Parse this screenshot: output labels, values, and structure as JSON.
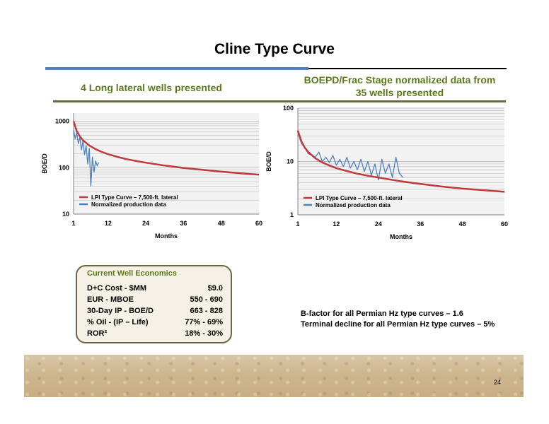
{
  "slide": {
    "title": "Cline Type Curve",
    "left_subtitle": "4 Long lateral wells presented",
    "right_subtitle_line1": "BOEPD/Frac Stage normalized data from",
    "right_subtitle_line2": "35 wells presented",
    "page_number": "24"
  },
  "economics": {
    "title": "Current Well Economics",
    "rows": [
      {
        "label": "D+C Cost - $MM",
        "value": "$9.0"
      },
      {
        "label": "EUR - MBOE",
        "value": "550 - 690"
      },
      {
        "label": "30-Day IP - BOE/D",
        "value": "663 - 828"
      },
      {
        "label": "% Oil - (IP – Life)",
        "value": "77% - 69%"
      },
      {
        "label": "ROR²",
        "value": "18% - 30%"
      }
    ]
  },
  "notes": {
    "line1": "B-factor for all Permian Hz type curves – 1.6",
    "line2": "Terminal decline for all Permian Hz type curves – 5%"
  },
  "colors": {
    "type_curve": "#c0393b",
    "production": "#4f81bd",
    "plot_bg": "#f2f2f2",
    "gridline": "#bfbfbf"
  },
  "chart_data": [
    {
      "type": "line",
      "xlabel": "Months",
      "ylabel": "BOE/D",
      "yscale": "log",
      "ylim": [
        10,
        1500
      ],
      "xlim": [
        1,
        60
      ],
      "x_ticks": [
        "1",
        "12",
        "24",
        "36",
        "48",
        "60"
      ],
      "y_ticks": [
        "10",
        "100",
        "1000"
      ],
      "legend_position": "bottom-left",
      "series": [
        {
          "name": "LPI Type Curve – 7,500-ft. lateral",
          "color": "#c0393b",
          "x": [
            1,
            2,
            3,
            4,
            6,
            8,
            10,
            12,
            15,
            18,
            21,
            24,
            30,
            36,
            42,
            48,
            54,
            60
          ],
          "y": [
            1000,
            620,
            470,
            390,
            300,
            250,
            218,
            195,
            170,
            152,
            139,
            128,
            111,
            99,
            90,
            82,
            76,
            71
          ]
        },
        {
          "name": "Normalized production data",
          "color": "#4f81bd",
          "x": [
            1,
            1.5,
            2,
            2.5,
            3,
            3.5,
            4,
            4.5,
            5,
            5.5,
            6,
            6.5,
            7,
            7.5,
            8,
            8.5,
            9
          ],
          "y": [
            650,
            420,
            560,
            330,
            450,
            240,
            380,
            190,
            300,
            120,
            260,
            40,
            170,
            80,
            140,
            110,
            130
          ]
        }
      ]
    },
    {
      "type": "line",
      "xlabel": "Months",
      "ylabel": "BOE/D",
      "yscale": "log",
      "ylim": [
        1,
        100
      ],
      "xlim": [
        1,
        60
      ],
      "x_ticks": [
        "1",
        "12",
        "24",
        "36",
        "48",
        "60"
      ],
      "y_ticks": [
        "1",
        "10",
        "100"
      ],
      "legend_position": "bottom-left",
      "series": [
        {
          "name": "LPI Type Curve – 7,500-ft. lateral",
          "color": "#c0393b",
          "x": [
            1,
            2,
            3,
            4,
            6,
            8,
            10,
            12,
            15,
            18,
            21,
            24,
            30,
            36,
            42,
            48,
            54,
            60
          ],
          "y": [
            38,
            24,
            18,
            15,
            11.5,
            9.6,
            8.4,
            7.5,
            6.6,
            5.9,
            5.4,
            5.0,
            4.3,
            3.8,
            3.4,
            3.1,
            2.9,
            2.7
          ]
        },
        {
          "name": "Normalized production data",
          "color": "#4f81bd",
          "x": [
            1,
            2,
            3,
            4,
            5,
            6,
            7,
            8,
            9,
            10,
            11,
            12,
            13,
            14,
            15,
            16,
            17,
            18,
            19,
            20,
            21,
            22,
            23,
            24,
            25,
            26,
            27,
            28,
            29,
            30,
            31
          ],
          "y": [
            35,
            22,
            18,
            14,
            13,
            12,
            15,
            10,
            12,
            9.5,
            13,
            8.5,
            11,
            8,
            12,
            7.5,
            10,
            7,
            11,
            6.5,
            10,
            5.5,
            9,
            4.5,
            11,
            6,
            9,
            5,
            12,
            6,
            5
          ]
        }
      ]
    }
  ]
}
